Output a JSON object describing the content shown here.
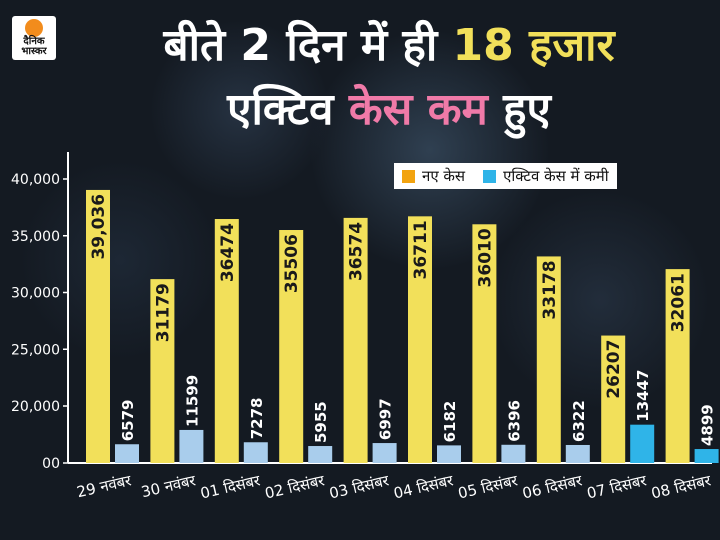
{
  "brand": {
    "line1": "दैनिक",
    "line2": "भास्कर"
  },
  "headline": {
    "line1_pre": "बीते 2 दिन में ही ",
    "line1_highlight": "18 हजार",
    "line2_pre": "एक्टिव ",
    "line2_highlight": "केस कम",
    "line2_post": " हुए"
  },
  "colors": {
    "new_cases": "#f2e05a",
    "active_drop": "#a9cdec",
    "active_drop_highlight": "#2fb4e8",
    "legend_new": "#f2a30f",
    "legend_active": "#2fb4e8"
  },
  "chart_data": {
    "type": "bar",
    "categories": [
      "29 नवंबर",
      "30 नवंबर",
      "01 दिसंबर",
      "02 दिसंबर",
      "03 दिसंबर",
      "04 दिसंबर",
      "05 दिसंबर",
      "06 दिसंबर",
      "07 दिसंबर",
      "08 दिसंबर"
    ],
    "series": [
      {
        "name": "नए केस",
        "values": [
          39036,
          31179,
          36474,
          35506,
          36574,
          36711,
          36010,
          33178,
          26207,
          32061
        ],
        "labels": [
          "39,036",
          "31179",
          "36474",
          "35506",
          "36574",
          "36711",
          "36010",
          "33178",
          "26207",
          "32061"
        ]
      },
      {
        "name": "एक्टिव केस में कमी",
        "values": [
          6579,
          11599,
          7278,
          5955,
          6997,
          6182,
          6396,
          6322,
          13447,
          4899
        ],
        "labels": [
          "6579",
          "11599",
          "7278",
          "5955",
          "6997",
          "6182",
          "6396",
          "6322",
          "13447",
          "4899"
        ]
      }
    ],
    "highlight_indices": [
      8,
      9
    ],
    "yticks": [
      "40,000",
      "35,000",
      "30,000",
      "25,000",
      "20,000",
      "00"
    ],
    "ytick_values": [
      40000,
      35000,
      30000,
      25000,
      20000,
      0
    ],
    "axis_break": "y axis compressed between 00 and 20,000",
    "grid": false,
    "legend_position": "top-right"
  }
}
